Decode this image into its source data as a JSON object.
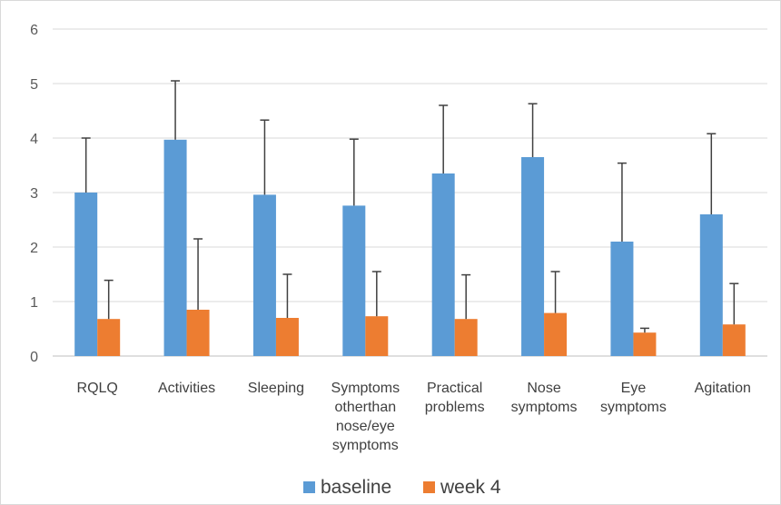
{
  "chart_data": {
    "type": "bar",
    "title": "",
    "xlabel": "",
    "ylabel": "",
    "ylim": [
      0,
      6
    ],
    "yticks": [
      0,
      1,
      2,
      3,
      4,
      5,
      6
    ],
    "grid": true,
    "legend_position": "bottom",
    "categories": [
      [
        "RQLQ"
      ],
      [
        "Activities"
      ],
      [
        "Sleeping"
      ],
      [
        "Symptoms",
        "otherthan",
        "nose/eye",
        "symptoms"
      ],
      [
        "Practical",
        "problems"
      ],
      [
        "Nose",
        "symptoms"
      ],
      [
        "Eye",
        "symptoms"
      ],
      [
        "Agitation"
      ]
    ],
    "series": [
      {
        "name": "baseline",
        "color": "#5b9bd5",
        "values": [
          3.0,
          3.97,
          2.96,
          2.76,
          3.35,
          3.65,
          2.1,
          2.6
        ],
        "error_upper": [
          1.0,
          1.08,
          1.37,
          1.22,
          1.25,
          0.98,
          1.44,
          1.48
        ]
      },
      {
        "name": "week 4",
        "color": "#ed7d31",
        "values": [
          0.68,
          0.85,
          0.7,
          0.73,
          0.68,
          0.79,
          0.43,
          0.58
        ],
        "error_upper": [
          0.71,
          1.3,
          0.8,
          0.82,
          0.81,
          0.76,
          0.08,
          0.75
        ]
      }
    ]
  }
}
